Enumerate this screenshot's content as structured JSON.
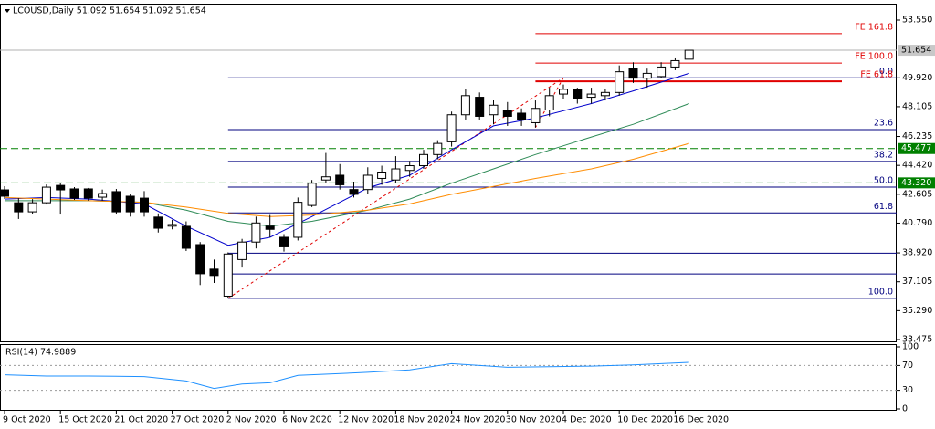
{
  "chart_data": [
    {
      "type": "candlestick",
      "title": "LCOUSD,Daily  51.092 51.654 51.092 51.654",
      "categories": [
        "9 Oct 2020",
        null,
        null,
        null,
        "15 Oct 2020",
        null,
        null,
        null,
        "21 Oct 2020",
        null,
        null,
        null,
        "27 Oct 2020",
        null,
        null,
        null,
        "2 Nov 2020",
        null,
        null,
        null,
        "6 Nov 2020",
        null,
        null,
        null,
        "12 Nov 2020",
        null,
        null,
        null,
        "18 Nov 2020",
        null,
        null,
        null,
        "24 Nov 2020",
        null,
        null,
        null,
        "30 Nov 2020",
        null,
        null,
        null,
        "4 Dec 2020",
        null,
        null,
        null,
        "10 Dec 2020",
        null,
        null,
        null,
        "16 Dec 2020",
        null
      ],
      "open": [
        42.88,
        42.07,
        41.5,
        42.07,
        43.16,
        42.94,
        42.94,
        42.42,
        42.77,
        42.48,
        42.36,
        41.17,
        40.6,
        40.59,
        39.44,
        37.9,
        36.2,
        38.5,
        39.6,
        40.6,
        39.9,
        39.9,
        41.9,
        43.5,
        43.8,
        42.9,
        42.9,
        43.6,
        43.5,
        44.1,
        44.4,
        45.1,
        45.9,
        47.6,
        48.7,
        47.6,
        47.9,
        47.7,
        47.1,
        47.9,
        48.9,
        49.2,
        48.7,
        48.8,
        49.0,
        50.5,
        49.9,
        50.0,
        50.6,
        51.092
      ],
      "high": [
        43.11,
        42.36,
        42.3,
        43.22,
        43.34,
        43.05,
        43.0,
        42.9,
        42.94,
        42.65,
        42.8,
        41.4,
        41.0,
        40.9,
        39.6,
        38.5,
        38.95,
        39.8,
        41.2,
        41.3,
        40.1,
        42.4,
        43.5,
        45.2,
        44.5,
        43.4,
        44.3,
        44.4,
        45.0,
        44.7,
        45.4,
        46.0,
        47.8,
        49.2,
        49.0,
        48.5,
        48.4,
        48.0,
        48.5,
        49.3,
        49.5,
        49.3,
        49.3,
        49.2,
        50.7,
        50.9,
        50.5,
        50.9,
        51.2,
        51.654
      ],
      "low": [
        42.31,
        41.05,
        41.39,
        41.96,
        41.33,
        42.25,
        42.2,
        42.2,
        41.33,
        41.2,
        41.2,
        40.2,
        40.4,
        39.04,
        36.9,
        37.03,
        36.06,
        38.0,
        39.2,
        39.9,
        39.0,
        39.7,
        41.8,
        43.3,
        42.9,
        42.4,
        42.6,
        43.2,
        43.3,
        43.7,
        44.2,
        44.8,
        45.6,
        47.3,
        47.3,
        47.0,
        46.9,
        46.9,
        46.8,
        47.5,
        48.6,
        48.3,
        48.3,
        48.5,
        48.8,
        49.6,
        49.3,
        49.9,
        50.4,
        51.092
      ],
      "close": [
        42.48,
        41.5,
        42.07,
        43.05,
        42.88,
        42.36,
        42.36,
        42.65,
        41.5,
        41.5,
        41.5,
        40.47,
        40.7,
        39.21,
        37.61,
        37.5,
        38.85,
        39.6,
        40.8,
        40.4,
        39.3,
        42.1,
        43.3,
        43.7,
        43.2,
        42.6,
        43.8,
        44.0,
        44.2,
        44.4,
        45.1,
        45.8,
        47.6,
        48.8,
        47.5,
        48.2,
        47.5,
        47.3,
        48.0,
        48.8,
        49.2,
        48.6,
        48.9,
        49.0,
        50.3,
        49.9,
        50.2,
        50.6,
        51.0,
        51.654
      ],
      "up_color": "#ffffff",
      "down_color": "#000000",
      "ylim": [
        33.36,
        54.525
      ],
      "yticks": [
        {
          "value": 53.55,
          "label": "53.550"
        },
        {
          "value": 49.92,
          "label": "49.920"
        },
        {
          "value": 48.105,
          "label": "48.105"
        },
        46.235,
        {
          "value": 44.42,
          "label": "44.420"
        },
        42.605,
        {
          "value": 40.79,
          "label": "40.790"
        },
        {
          "value": 38.92,
          "label": "38.920"
        },
        37.105,
        {
          "value": 35.29,
          "label": "35.290"
        },
        33.475
      ],
      "moving_averages": [
        {
          "color": "#0000cc",
          "x": [
            0,
            3,
            6,
            10,
            13,
            16,
            19,
            22,
            26,
            29,
            32,
            35,
            38,
            42,
            45,
            49
          ],
          "values": [
            42.3,
            42.4,
            42.3,
            42.0,
            40.6,
            39.4,
            39.9,
            41.2,
            43.0,
            43.8,
            45.4,
            46.9,
            47.4,
            48.3,
            49.1,
            50.2
          ]
        },
        {
          "color": "#2e8b57",
          "x": [
            0,
            3,
            6,
            10,
            13,
            16,
            19,
            22,
            26,
            29,
            32,
            35,
            38,
            42,
            45,
            49
          ],
          "values": [
            42.2,
            42.2,
            42.2,
            42.1,
            41.6,
            40.9,
            40.6,
            40.9,
            41.6,
            42.3,
            43.3,
            44.2,
            45.1,
            46.2,
            47.0,
            48.3
          ]
        },
        {
          "color": "#ff8c00",
          "x": [
            0,
            3,
            6,
            10,
            13,
            16,
            19,
            22,
            26,
            29,
            32,
            35,
            38,
            42,
            45,
            49
          ],
          "values": [
            42.4,
            42.3,
            42.2,
            42.1,
            41.8,
            41.4,
            41.2,
            41.3,
            41.6,
            42.0,
            42.6,
            43.1,
            43.6,
            44.2,
            44.8,
            45.8
          ]
        }
      ],
      "fib_start": 16,
      "fib_levels": [
        49.92,
        46.67,
        44.67,
        43.05,
        41.43,
        38.9,
        37.6,
        36.06
      ],
      "fib_labels": [
        "0.0",
        "23.6",
        "38.2",
        "50.0",
        "61.8",
        null,
        null,
        "100.0"
      ],
      "fib_color": "#00007f",
      "fe_start": 38,
      "fe_levels": [
        52.7,
        50.85,
        49.7
      ],
      "fe_labels": [
        "FE 161.8",
        "FE 100.0",
        "FE 61.8"
      ],
      "fe_color": "#e00000",
      "trend_lines": [
        {
          "x": [
            16,
            40
          ],
          "values": [
            36.06,
            49.92
          ]
        },
        {
          "x": [
            40,
            38
          ],
          "values": [
            49.92,
            46.8
          ]
        }
      ],
      "trend_color": "#e00000",
      "support_lines": [
        45.477,
        {
          "value": 43.32,
          "label": "43.320"
        }
      ],
      "support_color": "#008000",
      "last_price": 51.654
    },
    {
      "type": "line",
      "title": "RSI(14) 74.9889",
      "x": [
        0,
        3,
        6,
        10,
        13,
        15,
        17,
        19,
        21,
        26,
        29,
        32,
        34,
        36,
        39,
        42,
        45,
        49
      ],
      "values": [
        55,
        53,
        53,
        52,
        45,
        33,
        40,
        42,
        54,
        59,
        63,
        73,
        70,
        67,
        68,
        69,
        71,
        75
      ],
      "color": "#1e90ff",
      "ylim": [
        0,
        100
      ],
      "yticks": [
        100,
        70,
        30,
        0
      ],
      "levels": [
        70,
        30
      ]
    }
  ]
}
